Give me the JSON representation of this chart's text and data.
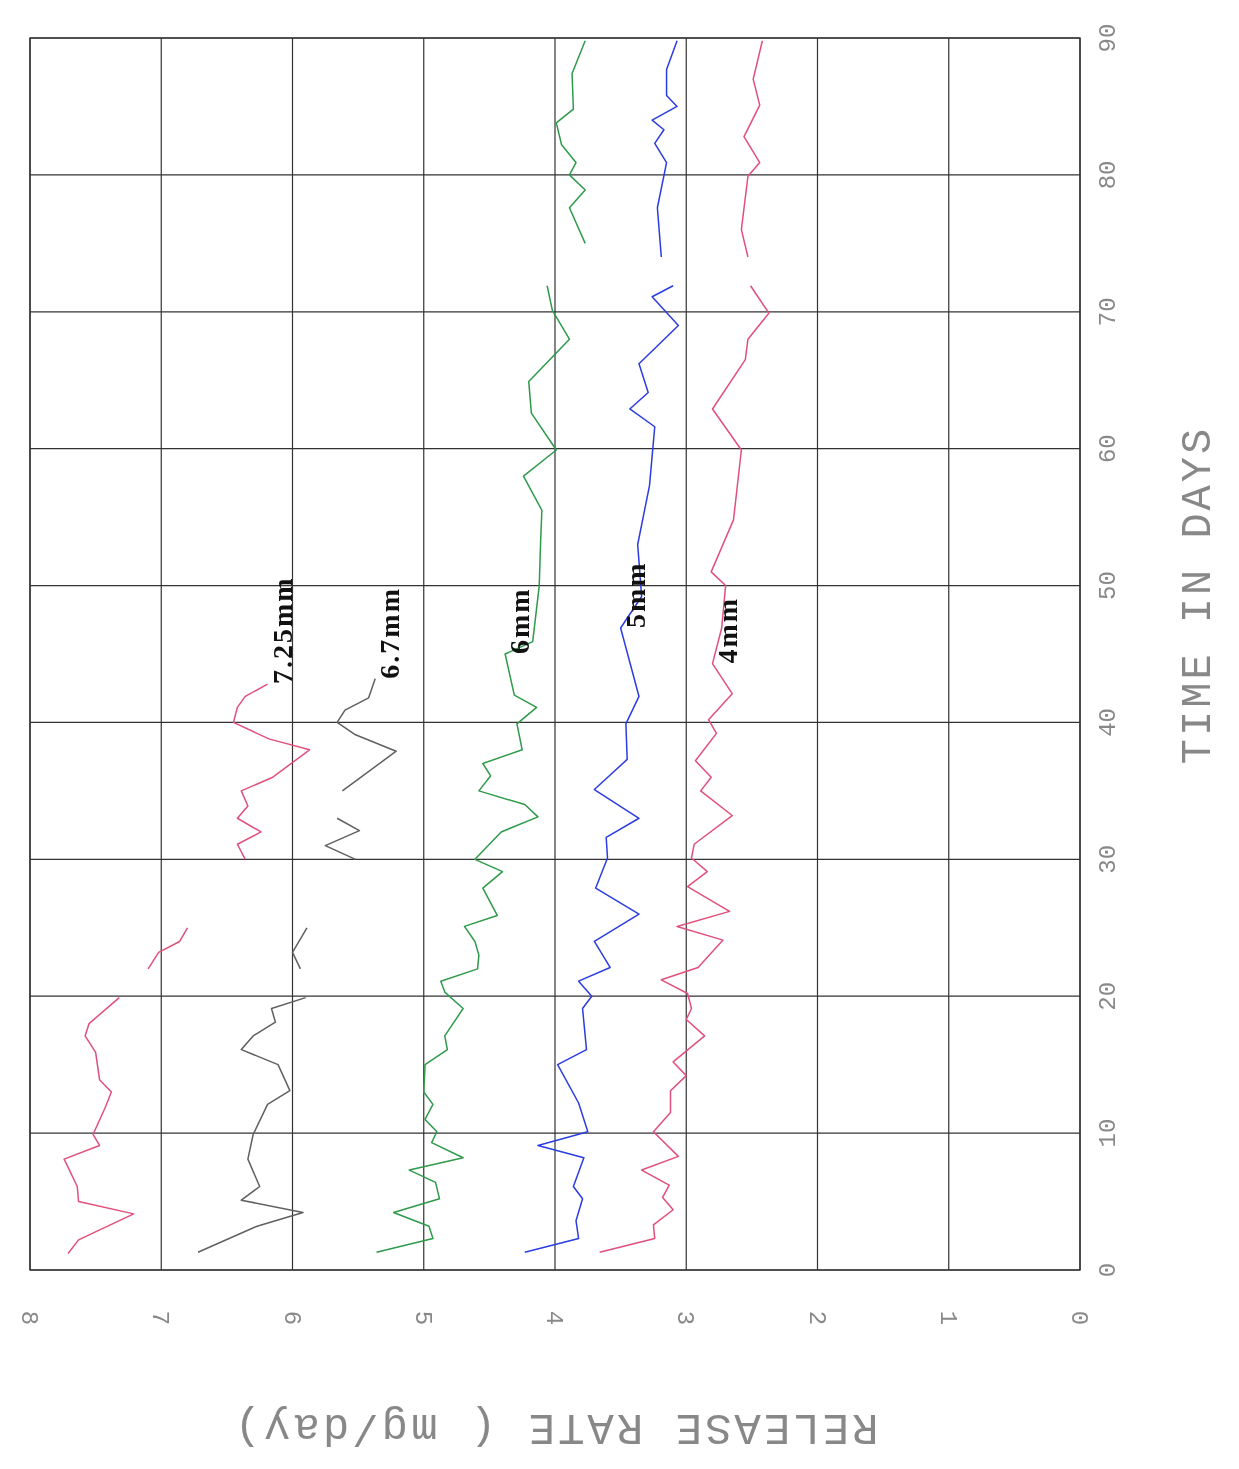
{
  "chart_data": {
    "type": "line",
    "xlabel": "RELEASE RATE ( mg/day)",
    "ylabel": "TIME IN DAYS",
    "xlim": [
      8,
      0
    ],
    "xticks": [
      0,
      1,
      2,
      3,
      4,
      5,
      6,
      7,
      8
    ],
    "ylim": [
      0,
      90
    ],
    "yticks": [
      0,
      10,
      20,
      30,
      40,
      50,
      60,
      70,
      80,
      90
    ],
    "grid": true,
    "line_style": "solid",
    "series": [
      {
        "name": "7.25mm",
        "color": "#e0507a",
        "values": [
          1.2,
          2.2,
          4.1,
          5,
          6.1,
          8.1,
          9.1,
          9.9,
          11.8,
          13,
          13.9,
          15.9,
          17.1,
          18,
          19.9,
          null,
          22,
          23.2,
          24,
          25,
          null,
          30,
          31.1,
          32,
          33,
          33.9,
          35,
          36,
          38,
          38.8,
          40,
          41.1,
          41.9,
          42.8
        ],
        "x": [
          7.71,
          7.63,
          7.21,
          7.63,
          7.64,
          7.74,
          7.47,
          7.52,
          7.43,
          7.38,
          7.47,
          7.5,
          7.58,
          7.55,
          7.32,
          null,
          7.1,
          7.02,
          6.86,
          6.8,
          null,
          6.36,
          6.42,
          6.24,
          6.42,
          6.34,
          6.39,
          6.15,
          5.87,
          6.18,
          6.45,
          6.42,
          6.36,
          6.19
        ]
      },
      {
        "name": "6.7mm",
        "color": "#606060",
        "values": [
          1.3,
          3.2,
          4.2,
          5.1,
          6.1,
          8.1,
          9.9,
          12.1,
          13.1,
          15,
          16.1,
          17.1,
          18.1,
          19.1,
          19.9,
          null,
          22,
          23.2,
          25,
          null,
          30,
          31,
          32.1,
          33,
          null,
          35,
          37.9,
          39.1,
          40,
          40.9,
          41.8,
          43.2
        ],
        "x": [
          6.72,
          6.27,
          5.92,
          6.39,
          6.25,
          6.34,
          6.3,
          6.19,
          6.02,
          6.11,
          6.39,
          6.3,
          6.13,
          6.16,
          5.9,
          null,
          5.94,
          6.0,
          5.89,
          null,
          5.52,
          5.75,
          5.49,
          5.66,
          null,
          5.62,
          5.21,
          5.52,
          5.66,
          5.6,
          5.42,
          5.37
        ]
      },
      {
        "name": "6mm",
        "color": "#2e9a4a",
        "values": [
          1.3,
          2.3,
          3.2,
          4.2,
          5.2,
          6.4,
          7.3,
          8.2,
          9.3,
          10.1,
          11,
          12.1,
          13,
          15,
          16.1,
          17.1,
          19.1,
          20.3,
          21.1,
          22,
          23,
          24,
          25.1,
          25.9,
          27.9,
          29.1,
          30,
          32,
          33.1,
          34,
          35,
          36.1,
          37,
          38,
          39.9,
          41.1,
          42,
          45,
          45.9,
          50,
          53.1,
          55.5,
          58,
          59.9,
          62.6,
          64.9,
          68,
          70.1,
          71.9,
          null,
          75,
          77.6,
          78.9,
          80,
          80.9,
          82.2,
          83.8,
          84.8,
          87.4,
          89.8
        ],
        "x": [
          5.36,
          4.93,
          4.96,
          5.23,
          4.88,
          4.91,
          5.11,
          4.7,
          4.94,
          4.9,
          4.99,
          4.93,
          5.0,
          4.99,
          4.82,
          4.84,
          4.7,
          4.84,
          4.87,
          4.59,
          4.58,
          4.61,
          4.69,
          4.44,
          4.55,
          4.4,
          4.61,
          4.41,
          4.13,
          4.23,
          4.58,
          4.49,
          4.55,
          4.25,
          4.29,
          4.14,
          4.31,
          4.38,
          4.17,
          4.12,
          4.11,
          4.1,
          4.24,
          3.99,
          4.18,
          4.2,
          3.89,
          4.02,
          4.06,
          null,
          3.77,
          3.89,
          3.77,
          3.89,
          3.84,
          3.95,
          3.99,
          3.86,
          3.87,
          3.77
        ]
      },
      {
        "name": "5mm",
        "color": "#2b3de0",
        "values": [
          1.3,
          2.3,
          3.6,
          5.2,
          6.1,
          8.2,
          9.1,
          10.1,
          12.2,
          15,
          16.1,
          19.1,
          20,
          21.1,
          22.1,
          24,
          26,
          27.9,
          30.1,
          31.6,
          33,
          35.1,
          37.3,
          39.9,
          41.9,
          46.9,
          49.2,
          53,
          57.3,
          61.6,
          62.9,
          64.1,
          66.2,
          69,
          71.1,
          71.9,
          null,
          74,
          77.6,
          80.9,
          82.3,
          83.3,
          84,
          85,
          85.8,
          87.7,
          89.8
        ],
        "x": [
          4.23,
          3.82,
          3.84,
          3.79,
          3.86,
          3.78,
          4.13,
          3.75,
          3.82,
          3.98,
          3.76,
          3.79,
          3.72,
          3.82,
          3.58,
          3.7,
          3.36,
          3.69,
          3.6,
          3.61,
          3.36,
          3.7,
          3.45,
          3.46,
          3.36,
          3.5,
          3.34,
          3.37,
          3.28,
          3.24,
          3.43,
          3.29,
          3.36,
          3.06,
          3.26,
          3.1,
          null,
          3.19,
          3.22,
          3.15,
          3.24,
          3.17,
          3.26,
          3.07,
          3.15,
          3.15,
          3.07
        ]
      },
      {
        "name": "4mm",
        "color": "#e0507a",
        "values": [
          1.3,
          2.3,
          3.3,
          4.4,
          5.3,
          6.2,
          7.3,
          8.3,
          10.1,
          11.5,
          13.1,
          14.2,
          15.2,
          17.1,
          18.3,
          19.1,
          20.2,
          21.2,
          22.1,
          24.1,
          25.1,
          26.2,
          28,
          29.1,
          30.1,
          31.1,
          33.2,
          35,
          36,
          37.2,
          39.2,
          40.2,
          42.1,
          44.3,
          46.9,
          50,
          51,
          54.8,
          59.9,
          62.9,
          66.5,
          68,
          69.9,
          71.9,
          null,
          74,
          76,
          79.9,
          80.9,
          82.8,
          85.1,
          87,
          89.8
        ],
        "x": [
          3.66,
          3.24,
          3.25,
          3.1,
          3.18,
          3.13,
          3.34,
          3.06,
          3.25,
          3.12,
          3.12,
          3.0,
          3.1,
          2.86,
          3.0,
          2.96,
          2.99,
          3.19,
          2.91,
          2.72,
          3.07,
          2.67,
          2.99,
          2.84,
          2.96,
          2.94,
          2.65,
          2.89,
          2.81,
          2.93,
          2.77,
          2.83,
          2.65,
          2.8,
          2.73,
          2.7,
          2.81,
          2.64,
          2.58,
          2.8,
          2.55,
          2.53,
          2.37,
          2.51,
          null,
          2.53,
          2.58,
          2.53,
          2.44,
          2.56,
          2.44,
          2.49,
          2.42
        ]
      }
    ]
  }
}
